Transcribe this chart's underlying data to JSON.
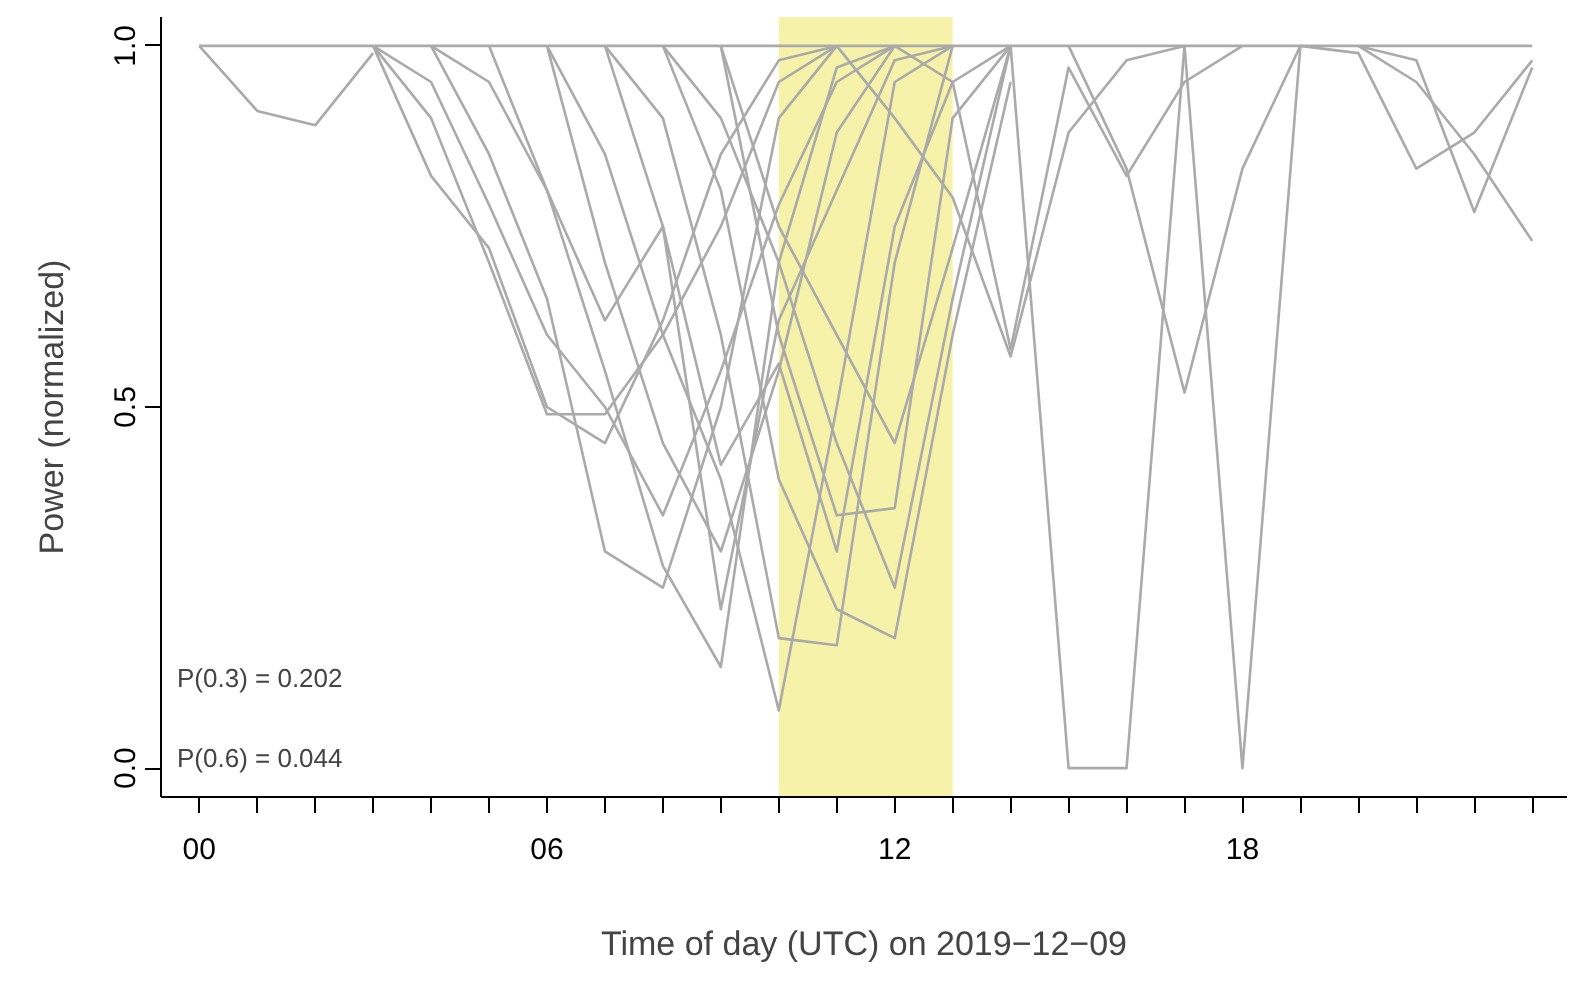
{
  "chart_data": {
    "type": "line",
    "xlabel": "Time of day (UTC) on 2019−12−09",
    "ylabel": "Power (normalized)",
    "series": [
      {
        "color": "#aaaaaa",
        "x": [
          0,
          23
        ],
        "values": [
          1,
          1
        ]
      },
      {
        "color": "#aaaaaa",
        "x": [
          0,
          1,
          2,
          3
        ],
        "values": [
          1,
          0.91,
          0.89,
          0.99
        ]
      },
      {
        "color": "#aaaaaa",
        "x": [
          3,
          4,
          5,
          6,
          7,
          8,
          9,
          10,
          11
        ],
        "values": [
          1,
          0.82,
          0.72,
          0.5,
          0.45,
          0.62,
          0.85,
          0.98,
          1
        ]
      },
      {
        "color": "#aaaaaa",
        "x": [
          3,
          4,
          5,
          6,
          7,
          8,
          9,
          10,
          11
        ],
        "values": [
          1,
          0.9,
          0.7,
          0.49,
          0.49,
          0.6,
          0.75,
          0.95,
          1
        ]
      },
      {
        "color": "#aaaaaa",
        "x": [
          4,
          5,
          6,
          7,
          8,
          9,
          10,
          11
        ],
        "values": [
          1,
          0.85,
          0.65,
          0.3,
          0.25,
          0.5,
          0.9,
          1
        ]
      },
      {
        "color": "#aaaaaa",
        "x": [
          5,
          6,
          7,
          8,
          9,
          10,
          11,
          12
        ],
        "values": [
          1,
          0.8,
          0.55,
          0.28,
          0.14,
          0.7,
          0.97,
          1
        ]
      },
      {
        "color": "#aaaaaa",
        "x": [
          6,
          7,
          8,
          9,
          10,
          11,
          12,
          13
        ],
        "values": [
          1,
          0.85,
          0.6,
          0.4,
          0.08,
          0.5,
          0.95,
          1
        ]
      },
      {
        "color": "#aaaaaa",
        "x": [
          7,
          8,
          9,
          10,
          11,
          12,
          13
        ],
        "values": [
          1,
          0.9,
          0.6,
          0.18,
          0.17,
          0.7,
          1
        ]
      },
      {
        "color": "#aaaaaa",
        "x": [
          8,
          9,
          10,
          11,
          12,
          13,
          14
        ],
        "values": [
          1,
          0.8,
          0.4,
          0.22,
          0.18,
          0.6,
          0.95
        ]
      },
      {
        "color": "#aaaaaa",
        "x": [
          9,
          10,
          11,
          12,
          13,
          14
        ],
        "values": [
          1,
          0.6,
          0.35,
          0.36,
          0.9,
          1
        ]
      },
      {
        "color": "#aaaaaa",
        "x": [
          9,
          10,
          11,
          12,
          13,
          14
        ],
        "values": [
          1,
          0.75,
          0.6,
          0.45,
          0.72,
          1
        ]
      },
      {
        "color": "#aaaaaa",
        "x": [
          11,
          12,
          13,
          14,
          15,
          16,
          17
        ],
        "values": [
          1,
          0.9,
          0.79,
          0.57,
          0.88,
          0.98,
          1
        ]
      },
      {
        "color": "#aaaaaa",
        "x": [
          14,
          15,
          16,
          17
        ],
        "values": [
          1,
          0,
          0,
          1
        ]
      },
      {
        "color": "#aaaaaa",
        "x": [
          17,
          18,
          19
        ],
        "values": [
          1,
          0,
          1
        ]
      },
      {
        "color": "#aaaaaa",
        "x": [
          15,
          16,
          17,
          18,
          19
        ],
        "values": [
          1,
          0.83,
          0.52,
          0.83,
          1
        ]
      },
      {
        "color": "#aaaaaa",
        "x": [
          12,
          13,
          14,
          15,
          16,
          17,
          18
        ],
        "values": [
          1,
          0.95,
          0.58,
          0.97,
          0.82,
          0.95,
          1
        ]
      },
      {
        "color": "#aaaaaa",
        "x": [
          19,
          20,
          21,
          22,
          23
        ],
        "values": [
          1,
          0.99,
          0.83,
          0.88,
          0.98
        ]
      },
      {
        "color": "#aaaaaa",
        "x": [
          20,
          21,
          22,
          23
        ],
        "values": [
          1,
          0.98,
          0.77,
          0.97
        ]
      },
      {
        "color": "#aaaaaa",
        "x": [
          20,
          21,
          22,
          23
        ],
        "values": [
          1,
          0.95,
          0.85,
          0.73
        ]
      },
      {
        "color": "#aaaaaa",
        "x": [
          3,
          4,
          5,
          6,
          7,
          8,
          9,
          10,
          11,
          12
        ],
        "values": [
          1,
          0.95,
          0.78,
          0.6,
          0.5,
          0.35,
          0.55,
          0.78,
          0.95,
          1
        ]
      },
      {
        "color": "#aaaaaa",
        "x": [
          6,
          7,
          8,
          9,
          10,
          11,
          12
        ],
        "values": [
          1,
          0.7,
          0.45,
          0.3,
          0.55,
          0.88,
          1
        ]
      },
      {
        "color": "#aaaaaa",
        "x": [
          7,
          8,
          9,
          10,
          11,
          12,
          13,
          14
        ],
        "values": [
          1,
          0.75,
          0.42,
          0.56,
          0.3,
          0.75,
          0.95,
          1
        ]
      },
      {
        "color": "#aaaaaa",
        "x": [
          8,
          9,
          10,
          11,
          12,
          13,
          14
        ],
        "values": [
          1,
          0.9,
          0.7,
          0.45,
          0.25,
          0.65,
          1
        ]
      },
      {
        "color": "#aaaaaa",
        "x": [
          4,
          5,
          6,
          7,
          8,
          9,
          10,
          11,
          12,
          13
        ],
        "values": [
          1,
          0.95,
          0.8,
          0.62,
          0.75,
          0.22,
          0.62,
          0.8,
          0.98,
          1
        ]
      }
    ],
    "bands": [
      {
        "axis": "x",
        "from": 10,
        "to": 13,
        "color": "#f0e970"
      }
    ],
    "annotations": [
      "P(0.3) = 0.202",
      "P(0.6) = 0.044"
    ],
    "xlim": [
      -0.66,
      23.6
    ],
    "ylim": [
      -0.04,
      1.04
    ],
    "xticks": [
      {
        "value": 0,
        "label": "00"
      },
      {
        "value": 1,
        "label": null
      },
      {
        "value": 2,
        "label": null
      },
      {
        "value": 3,
        "label": null
      },
      {
        "value": 4,
        "label": null
      },
      {
        "value": 5,
        "label": null
      },
      {
        "value": 6,
        "label": "06"
      },
      {
        "value": 7,
        "label": null
      },
      {
        "value": 8,
        "label": null
      },
      {
        "value": 9,
        "label": null
      },
      {
        "value": 10,
        "label": null
      },
      {
        "value": 11,
        "label": null
      },
      {
        "value": 12,
        "label": "12"
      },
      {
        "value": 13,
        "label": null
      },
      {
        "value": 14,
        "label": null
      },
      {
        "value": 15,
        "label": null
      },
      {
        "value": 16,
        "label": null
      },
      {
        "value": 17,
        "label": null
      },
      {
        "value": 18,
        "label": "18"
      },
      {
        "value": 19,
        "label": null
      },
      {
        "value": 20,
        "label": null
      },
      {
        "value": 21,
        "label": null
      },
      {
        "value": 22,
        "label": null
      },
      {
        "value": 23,
        "label": null
      }
    ],
    "yticks": [
      {
        "value": 0,
        "label": "0.0"
      },
      {
        "value": 0.5,
        "label": "0.5"
      },
      {
        "value": 1,
        "label": "1.0"
      }
    ],
    "line_style": "solid",
    "marker": "none"
  }
}
